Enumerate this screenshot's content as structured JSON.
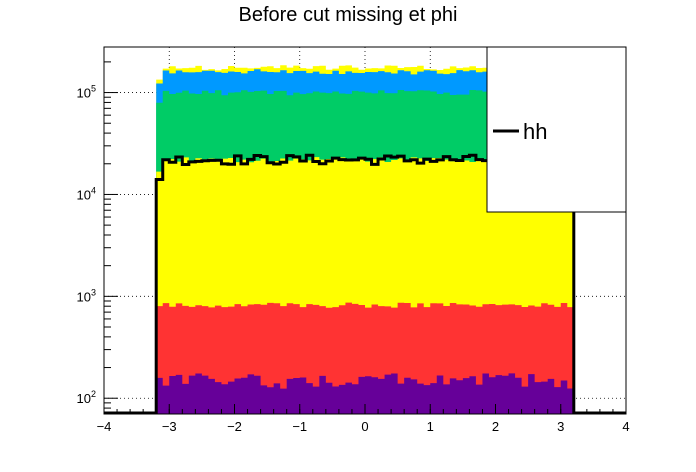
{
  "chart_data": {
    "type": "stacked-histogram",
    "title": "Before cut missing et phi",
    "xlim": [
      -4,
      4
    ],
    "ylim": [
      70,
      280000
    ],
    "yscale": "log",
    "grid": true,
    "x_ticks": [
      -4,
      -3,
      -2,
      -1,
      0,
      1,
      2,
      3,
      4
    ],
    "x_tick_labels": [
      "−4",
      "−3",
      "−2",
      "−1",
      "0",
      "1",
      "2",
      "3",
      "4"
    ],
    "y_ticks": [
      100,
      1000,
      10000,
      100000
    ],
    "y_tick_labels": [
      {
        "base": "10",
        "exp": "2"
      },
      {
        "base": "10",
        "exp": "3"
      },
      {
        "base": "10",
        "exp": "4"
      },
      {
        "base": "10",
        "exp": "5"
      }
    ],
    "bin_low": -3.2,
    "bin_high": 3.2,
    "n_bins": 64,
    "stack_levels": [
      {
        "color": "#660099",
        "level": 150
      },
      {
        "color": "#ff3333",
        "level": 820
      },
      {
        "color": "#ffff00",
        "level": 22000
      },
      {
        "color": "#00cc66",
        "level": 100000
      },
      {
        "color": "#0099ff",
        "level": 160000
      },
      {
        "color": "#ffff00",
        "level": 175000
      }
    ],
    "overlay": {
      "name": "hh",
      "color": "#000000",
      "level": 22000,
      "first_bin": 14000
    },
    "legend": {
      "position": "top-right",
      "entries": [
        {
          "label": "hh",
          "color": "#000000"
        }
      ]
    }
  }
}
